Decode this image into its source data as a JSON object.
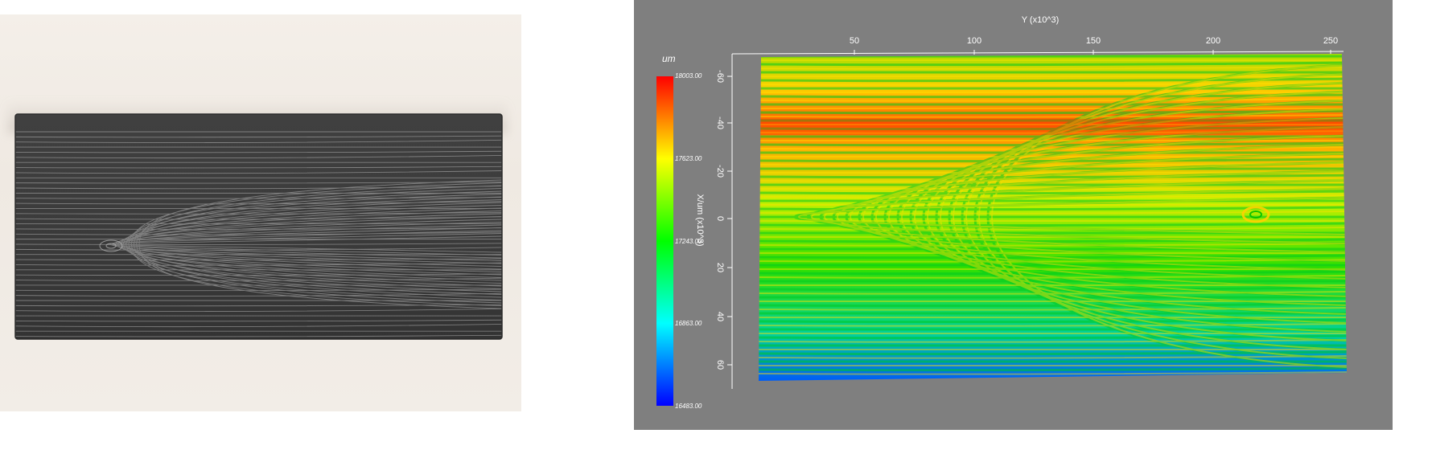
{
  "photo": {
    "subject": "wood-grain-board-photo",
    "board_color": "#3a3a3a",
    "background_color": "#f1ece6"
  },
  "scan": {
    "background_color": "#7f7f7f",
    "x_axis_title": "Y (x10^3)",
    "x_ticks": [
      "50",
      "100",
      "150",
      "200",
      "250"
    ],
    "y_axis_title": "X/um (x10^3)",
    "y_ticks": [
      "-60",
      "-40",
      "-20",
      "0",
      "20",
      "40",
      "60"
    ],
    "colorbar": {
      "unit": "um",
      "values": [
        "18003.00",
        "17623.00",
        "17243.00",
        "16863.00",
        "16483.00"
      ],
      "colors": [
        "#ff0000",
        "#ffff00",
        "#00ff00",
        "#00ffff",
        "#0000ff"
      ]
    }
  }
}
